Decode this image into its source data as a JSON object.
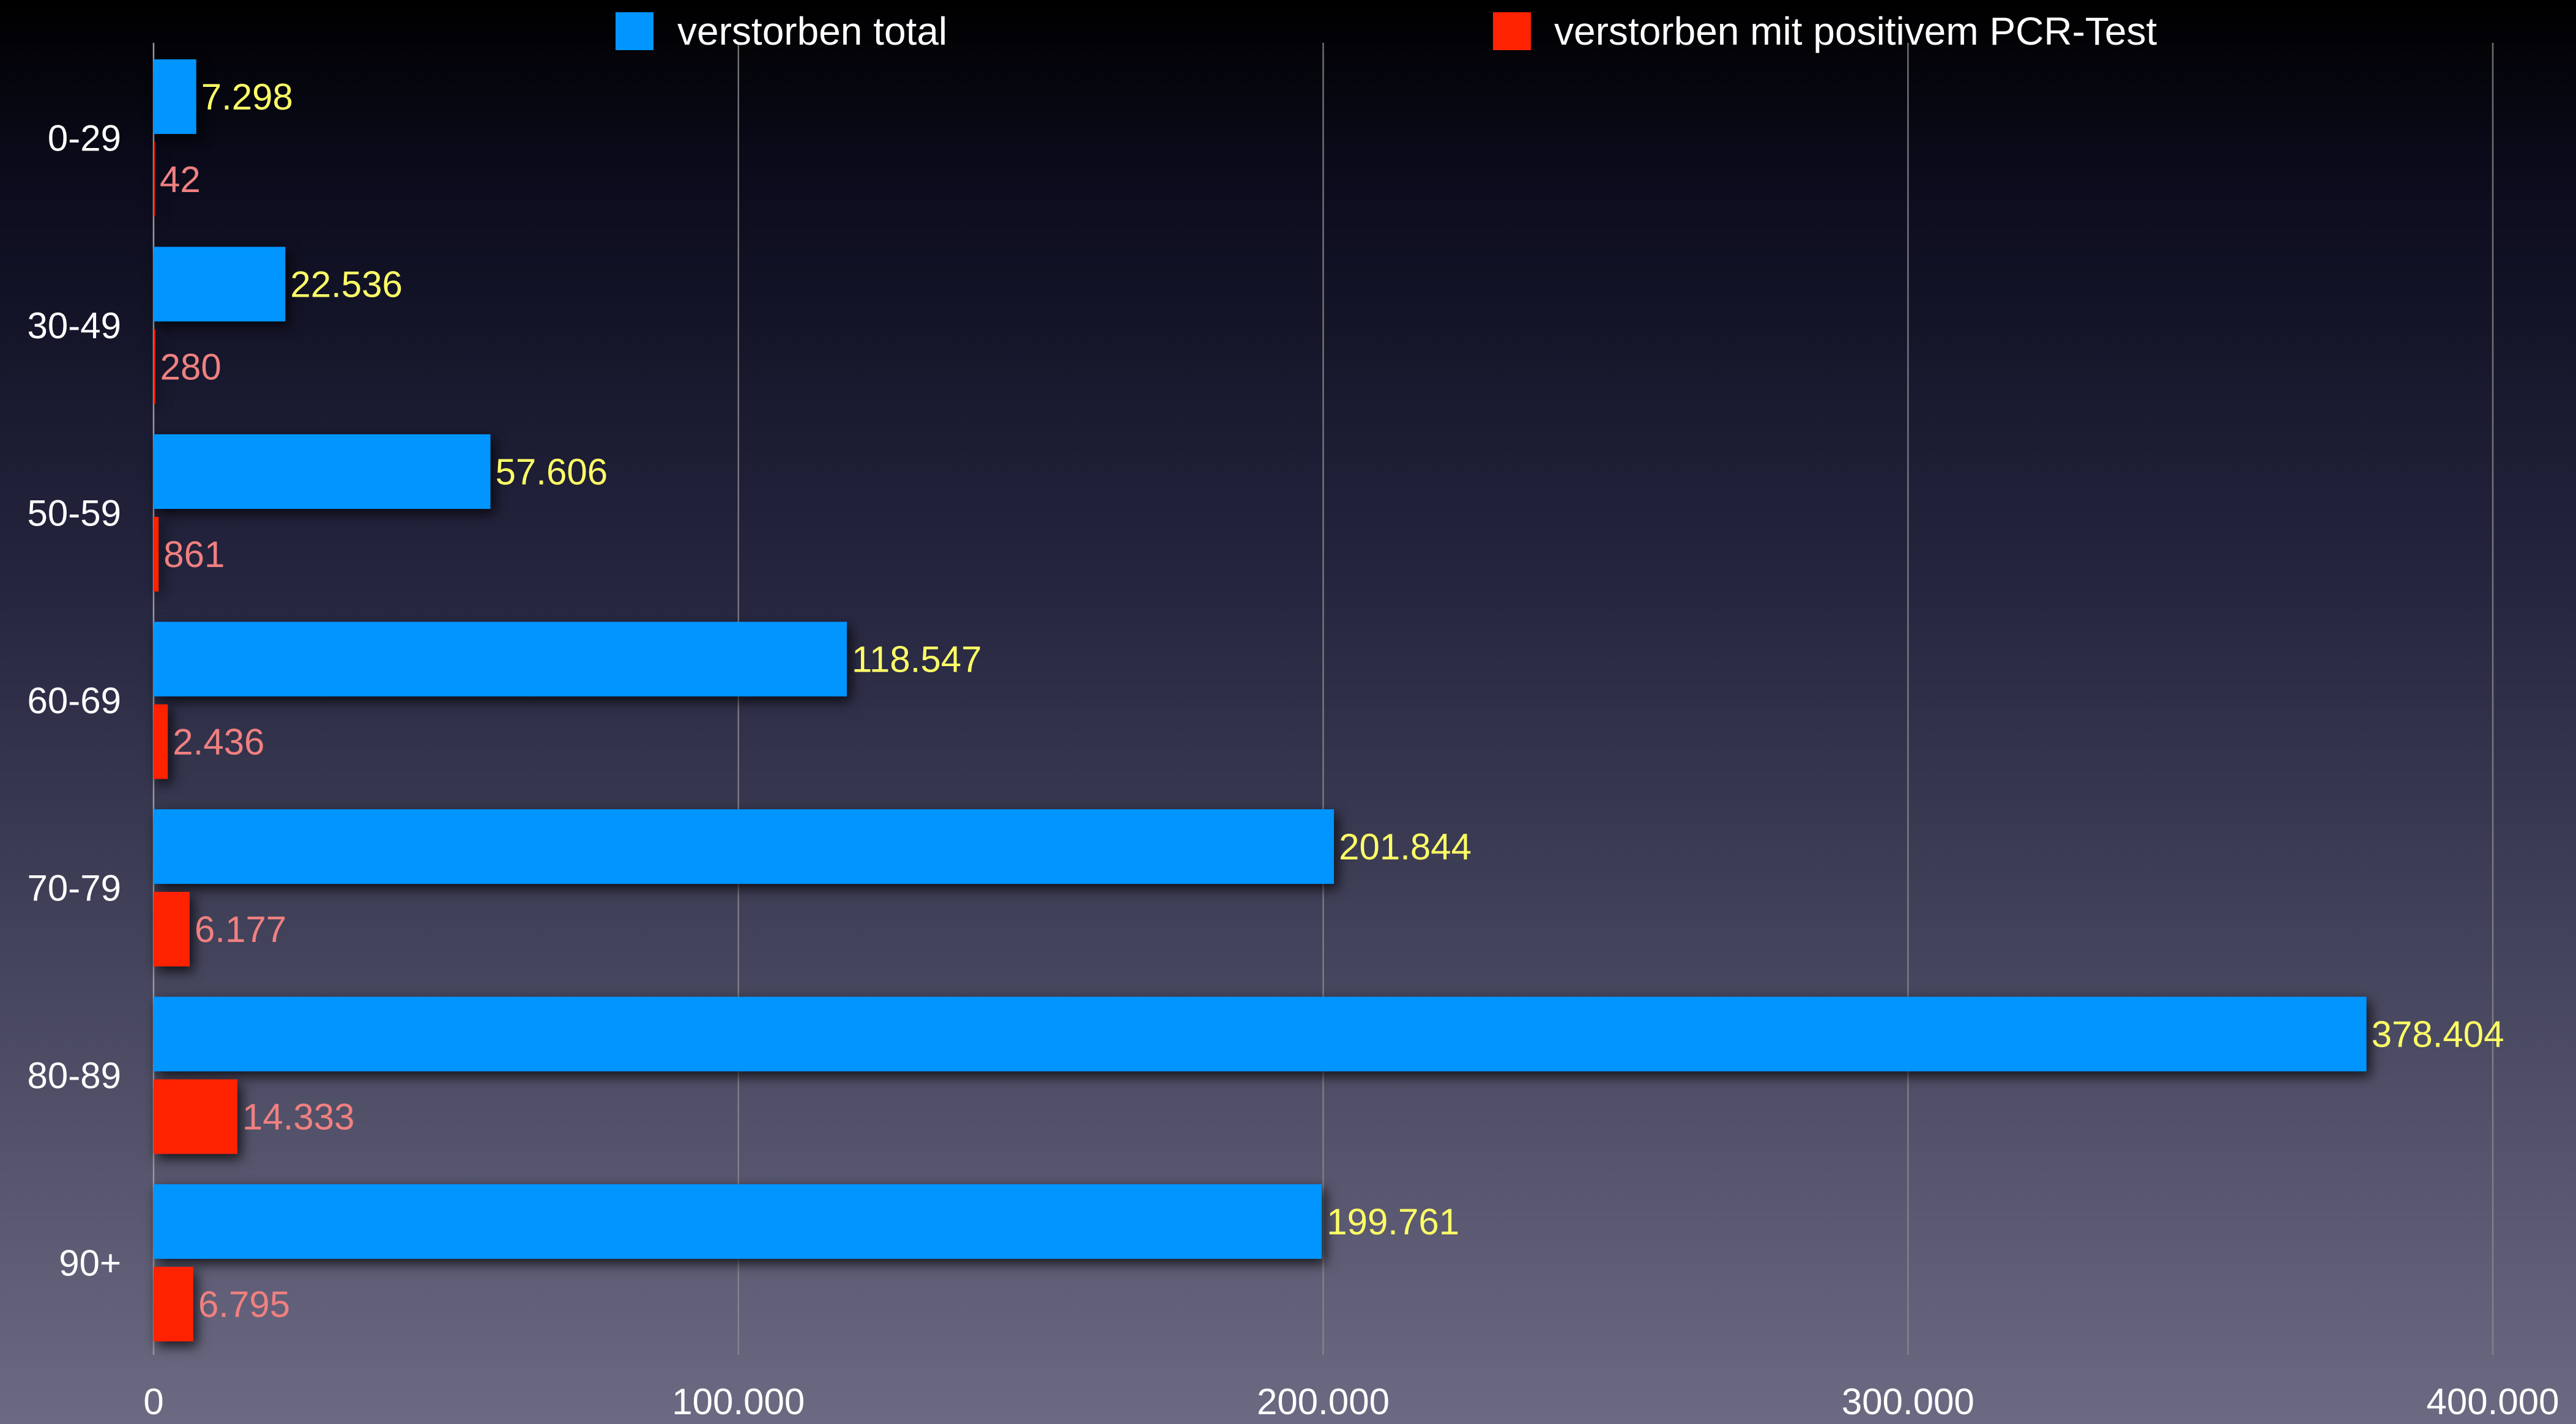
{
  "chart_data": {
    "type": "bar",
    "orientation": "horizontal",
    "categories": [
      "0-29",
      "30-49",
      "50-59",
      "60-69",
      "70-79",
      "80-89",
      "90+"
    ],
    "series": [
      {
        "name": "verstorben total",
        "color": "#0095ff",
        "label_color": "#ffff66",
        "values": [
          7298,
          22536,
          57606,
          118547,
          201844,
          378404,
          199761
        ],
        "value_labels": [
          "7.298",
          "22.536",
          "57.606",
          "118.547",
          "201.844",
          "378.404",
          "199.761"
        ]
      },
      {
        "name": "verstorben mit positivem PCR-Test",
        "color": "#ff2200",
        "label_color": "#f08080",
        "values": [
          42,
          280,
          861,
          2436,
          6177,
          14333,
          6795
        ],
        "value_labels": [
          "42",
          "280",
          "861",
          "2.436",
          "6.177",
          "14.333",
          "6.795"
        ]
      }
    ],
    "xlim": [
      0,
      400000
    ],
    "xticks": [
      0,
      100000,
      200000,
      300000,
      400000
    ],
    "xtick_labels": [
      "0",
      "100.000",
      "200.000",
      "300.000",
      "400.000"
    ],
    "grid": "vertical",
    "legend_position": "top",
    "axis_text_color": "#ffffff",
    "grid_color": "#8a8a8a"
  }
}
